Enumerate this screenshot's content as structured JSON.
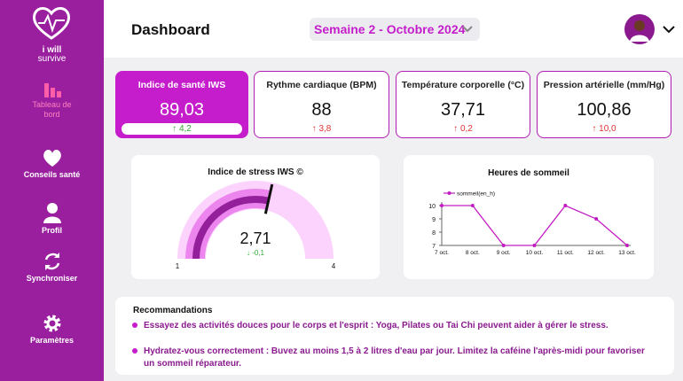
{
  "logo": {
    "line1": "i will",
    "line2": "survive"
  },
  "nav": [
    "Tableau de bord",
    "Conseils santé",
    "Profil",
    "Synchroniser",
    "Paramètres"
  ],
  "header": {
    "title": "Dashboard",
    "period": "Semaine 2 - Octobre 2024"
  },
  "kpis": [
    {
      "title": "Indice de santé IWS",
      "value": "89,03",
      "change": "4,2"
    },
    {
      "title": "Rythme cardiaque (BPM)",
      "value": "88",
      "change": "3,8"
    },
    {
      "title": "Température corporelle (°C)",
      "value": "37,71",
      "change": "0,2"
    },
    {
      "title": "Pression artérielle (mm/Hg)",
      "value": "100,86",
      "change": "10,0"
    }
  ],
  "chart_data": [
    {
      "type": "gauge",
      "title": "Indice de stress IWS ©",
      "value": 2.71,
      "value_label": "2,71",
      "change": "-0,1",
      "min": 1,
      "max": 4
    },
    {
      "type": "line",
      "title": "Heures de sommeil",
      "categories": [
        "7 oct.",
        "8 oct.",
        "9 oct.",
        "10 oct.",
        "11 oct.",
        "12 oct.",
        "13 oct."
      ],
      "series": [
        {
          "name": "sommeil(en_h)",
          "color": "#c21cc2",
          "values": [
            10,
            10,
            7,
            7,
            10,
            9,
            7
          ]
        }
      ],
      "ylim": [
        7,
        10
      ],
      "yticks": [
        7,
        8,
        9,
        10
      ]
    }
  ],
  "recommendations": {
    "title": "Recommandations",
    "items": [
      "Essayez des activités douces pour le corps et l'esprit : Yoga, Pilates ou Tai Chi peuvent aider à gérer le stress.",
      "Hydratez-vous correctement : Buvez au moins 1,5 à 2 litres d'eau par jour. Limitez la caféine l'après-midi pour favoriser un sommeil réparateur."
    ]
  }
}
